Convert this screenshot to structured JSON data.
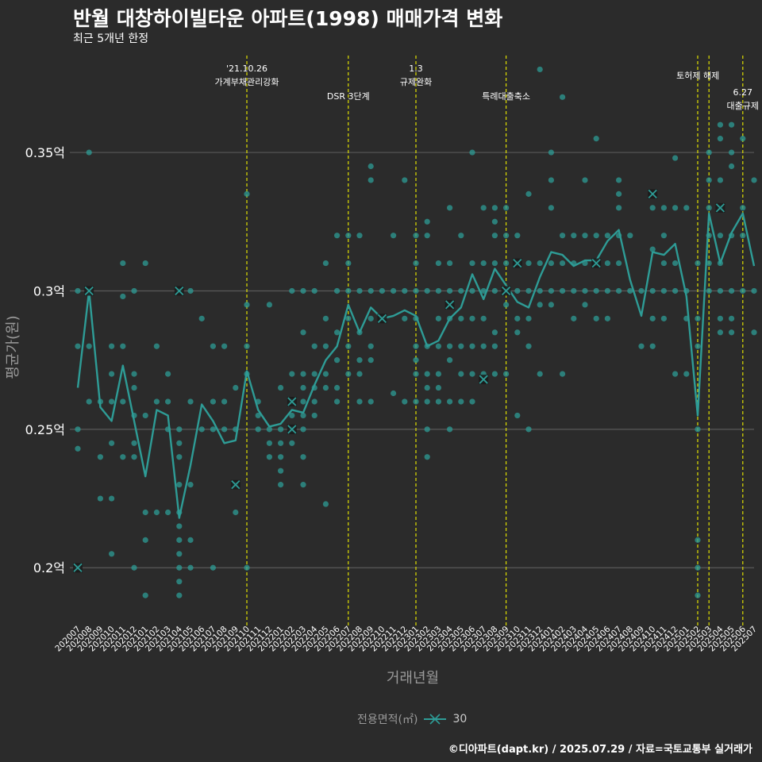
{
  "title": "반월 대창하이빌타운 아파트(1998) 매매가격 변화",
  "subtitle": "최근 5개년 한정",
  "caption": "©디아파트(dapt.kr) / 2025.07.29 / 자료=국토교통부 실거래가",
  "legend": {
    "title": "전용면적(㎡)",
    "label": "30"
  },
  "colors": {
    "background": "#2b2b2b",
    "series": "#2e9c96",
    "point": "#2e9c96",
    "event_line": "#e0e000",
    "grid": "#5a5a5a"
  },
  "chart_data": {
    "type": "line",
    "title": "반월 대창하이빌타운 아파트(1998) 매매가격 변화",
    "xlabel": "거래년월",
    "ylabel": "평균가(원)",
    "ylim": [
      0.18,
      0.385
    ],
    "yticks": [
      0.2,
      0.25,
      0.3,
      0.35
    ],
    "ytick_labels": [
      "0.2억",
      "0.25억",
      "0.3억",
      "0.35억"
    ],
    "categories": [
      "202007",
      "202008",
      "202009",
      "202010",
      "202011",
      "202012",
      "202101",
      "202102",
      "202103",
      "202104",
      "202105",
      "202106",
      "202107",
      "202108",
      "202109",
      "202110",
      "202111",
      "202112",
      "202201",
      "202202",
      "202203",
      "202204",
      "202205",
      "202206",
      "202207",
      "202208",
      "202209",
      "202210",
      "202211",
      "202212",
      "202301",
      "202302",
      "202303",
      "202304",
      "202305",
      "202306",
      "202307",
      "202308",
      "202309",
      "202310",
      "202311",
      "202312",
      "202401",
      "202402",
      "202403",
      "202404",
      "202405",
      "202406",
      "202407",
      "202408",
      "202409",
      "202410",
      "202411",
      "202412",
      "202501",
      "202502",
      "202503",
      "202504",
      "202505",
      "202506",
      "202507"
    ],
    "series": [
      {
        "name": "30",
        "values": [
          0.265,
          0.3,
          0.258,
          0.253,
          0.273,
          0.253,
          0.233,
          0.257,
          0.255,
          0.218,
          0.237,
          0.259,
          0.253,
          0.245,
          0.246,
          0.271,
          0.257,
          0.251,
          0.252,
          0.257,
          0.256,
          0.266,
          0.275,
          0.28,
          0.295,
          0.285,
          0.294,
          0.29,
          0.291,
          0.293,
          0.291,
          0.28,
          0.282,
          0.29,
          0.294,
          0.306,
          0.297,
          0.308,
          0.302,
          0.296,
          0.294,
          0.305,
          0.314,
          0.313,
          0.309,
          0.311,
          0.311,
          0.318,
          0.322,
          0.304,
          0.291,
          0.314,
          0.313,
          0.317,
          0.298,
          0.255,
          0.328,
          0.31,
          0.321,
          0.328,
          0.309
        ]
      }
    ],
    "highlight_points": [
      {
        "x": "202007",
        "y": 0.2
      },
      {
        "x": "202008",
        "y": 0.3
      },
      {
        "x": "202104",
        "y": 0.3
      },
      {
        "x": "202109",
        "y": 0.23
      },
      {
        "x": "202202",
        "y": 0.26
      },
      {
        "x": "202202",
        "y": 0.25
      },
      {
        "x": "202210",
        "y": 0.29
      },
      {
        "x": "202304",
        "y": 0.295
      },
      {
        "x": "202307",
        "y": 0.268
      },
      {
        "x": "202309",
        "y": 0.3
      },
      {
        "x": "202310",
        "y": 0.31
      },
      {
        "x": "202405",
        "y": 0.31
      },
      {
        "x": "202410",
        "y": 0.335
      },
      {
        "x": "202504",
        "y": 0.33
      }
    ],
    "events": [
      {
        "x": "202110",
        "lines": [
          "'21.10.26",
          "가계부채관리강화"
        ],
        "row": 0
      },
      {
        "x": "202207",
        "lines": [
          "DSR 3단계"
        ],
        "row": 1
      },
      {
        "x": "202301",
        "lines": [
          "1.3",
          "규제완화"
        ],
        "row": 0
      },
      {
        "x": "202309",
        "lines": [
          "특례대출축소"
        ],
        "row": 1
      },
      {
        "x": "202502",
        "lines": [],
        "row": 0
      },
      {
        "x": "202503",
        "lines": [
          "토허제 해제"
        ],
        "row": 0
      },
      {
        "x": "202506",
        "lines": [
          "6.27",
          "대출규제"
        ],
        "row": 2
      }
    ],
    "scatter": [
      [
        "202007",
        [
          0.3,
          0.28,
          0.25,
          0.243,
          0.2
        ]
      ],
      [
        "202008",
        [
          0.35,
          0.3,
          0.28,
          0.26
        ]
      ],
      [
        "202009",
        [
          0.24,
          0.225,
          0.26
        ]
      ],
      [
        "202010",
        [
          0.28,
          0.27,
          0.26,
          0.245,
          0.225,
          0.205
        ]
      ],
      [
        "202011",
        [
          0.31,
          0.298,
          0.28,
          0.26,
          0.24
        ]
      ],
      [
        "202012",
        [
          0.3,
          0.27,
          0.265,
          0.255,
          0.245,
          0.24,
          0.2
        ]
      ],
      [
        "202101",
        [
          0.31,
          0.255,
          0.22,
          0.21,
          0.19
        ]
      ],
      [
        "202102",
        [
          0.28,
          0.26,
          0.22
        ]
      ],
      [
        "202103",
        [
          0.27,
          0.26,
          0.25,
          0.22
        ]
      ],
      [
        "202104",
        [
          0.3,
          0.25,
          0.245,
          0.24,
          0.23,
          0.22,
          0.215,
          0.21,
          0.205,
          0.2,
          0.195,
          0.19
        ]
      ],
      [
        "202105",
        [
          0.3,
          0.26,
          0.23,
          0.21,
          0.2
        ]
      ],
      [
        "202106",
        [
          0.29,
          0.25
        ]
      ],
      [
        "202107",
        [
          0.28,
          0.26,
          0.25,
          0.2
        ]
      ],
      [
        "202108",
        [
          0.28,
          0.26,
          0.25
        ]
      ],
      [
        "202109",
        [
          0.265,
          0.25,
          0.23,
          0.22
        ]
      ],
      [
        "202110",
        [
          0.335,
          0.295,
          0.28,
          0.27,
          0.2
        ]
      ],
      [
        "202111",
        [
          0.26,
          0.255,
          0.25
        ]
      ],
      [
        "202112",
        [
          0.295,
          0.25,
          0.245,
          0.24
        ]
      ],
      [
        "202201",
        [
          0.265,
          0.25,
          0.245,
          0.24,
          0.235,
          0.23
        ]
      ],
      [
        "202202",
        [
          0.3,
          0.27,
          0.26,
          0.255,
          0.25,
          0.245
        ]
      ],
      [
        "202203",
        [
          0.3,
          0.285,
          0.27,
          0.265,
          0.26,
          0.255,
          0.25,
          0.24,
          0.23
        ]
      ],
      [
        "202204",
        [
          0.3,
          0.28,
          0.27,
          0.265,
          0.26,
          0.255
        ]
      ],
      [
        "202205",
        [
          0.31,
          0.29,
          0.28,
          0.27,
          0.265,
          0.223
        ]
      ],
      [
        "202206",
        [
          0.32,
          0.3,
          0.285,
          0.275,
          0.265,
          0.26
        ]
      ],
      [
        "202207",
        [
          0.32,
          0.31,
          0.3,
          0.29,
          0.28,
          0.27
        ]
      ],
      [
        "202208",
        [
          0.32,
          0.3,
          0.285,
          0.275,
          0.27,
          0.26
        ]
      ],
      [
        "202209",
        [
          0.345,
          0.34,
          0.3,
          0.29,
          0.28,
          0.275,
          0.26
        ]
      ],
      [
        "202210",
        [
          0.3,
          0.29
        ]
      ],
      [
        "202211",
        [
          0.32,
          0.3,
          0.263
        ]
      ],
      [
        "202212",
        [
          0.34,
          0.3,
          0.29,
          0.26
        ]
      ],
      [
        "202301",
        [
          0.32,
          0.31,
          0.3,
          0.29,
          0.28,
          0.275,
          0.27,
          0.26
        ]
      ],
      [
        "202302",
        [
          0.325,
          0.32,
          0.3,
          0.28,
          0.27,
          0.265,
          0.26,
          0.25,
          0.24
        ]
      ],
      [
        "202303",
        [
          0.31,
          0.3,
          0.29,
          0.28,
          0.27,
          0.265,
          0.26
        ]
      ],
      [
        "202304",
        [
          0.33,
          0.31,
          0.3,
          0.29,
          0.28,
          0.275,
          0.26,
          0.25
        ]
      ],
      [
        "202305",
        [
          0.32,
          0.3,
          0.29,
          0.28,
          0.27,
          0.26
        ]
      ],
      [
        "202306",
        [
          0.35,
          0.31,
          0.3,
          0.29,
          0.28,
          0.27,
          0.26
        ]
      ],
      [
        "202307",
        [
          0.33,
          0.31,
          0.3,
          0.29,
          0.28,
          0.27
        ]
      ],
      [
        "202308",
        [
          0.33,
          0.325,
          0.32,
          0.31,
          0.3,
          0.285,
          0.28,
          0.27
        ]
      ],
      [
        "202309",
        [
          0.33,
          0.32,
          0.31,
          0.3,
          0.295,
          0.27
        ]
      ],
      [
        "202310",
        [
          0.32,
          0.31,
          0.3,
          0.29,
          0.285,
          0.255
        ]
      ],
      [
        "202311",
        [
          0.335,
          0.31,
          0.3,
          0.29,
          0.28,
          0.25
        ]
      ],
      [
        "202312",
        [
          0.38,
          0.31,
          0.3,
          0.295,
          0.27
        ]
      ],
      [
        "202401",
        [
          0.35,
          0.34,
          0.33,
          0.31,
          0.3,
          0.295
        ]
      ],
      [
        "202402",
        [
          0.37,
          0.32,
          0.31,
          0.3,
          0.27
        ]
      ],
      [
        "202403",
        [
          0.32,
          0.31,
          0.3,
          0.29
        ]
      ],
      [
        "202404",
        [
          0.34,
          0.32,
          0.31,
          0.3,
          0.295
        ]
      ],
      [
        "202405",
        [
          0.355,
          0.32,
          0.31,
          0.3,
          0.29
        ]
      ],
      [
        "202406",
        [
          0.32,
          0.31,
          0.3,
          0.29
        ]
      ],
      [
        "202407",
        [
          0.34,
          0.335,
          0.33,
          0.32,
          0.31,
          0.3
        ]
      ],
      [
        "202408",
        [
          0.32,
          0.3
        ]
      ],
      [
        "202409",
        [
          0.3,
          0.28
        ]
      ],
      [
        "202410",
        [
          0.33,
          0.315,
          0.3,
          0.29,
          0.28
        ]
      ],
      [
        "202411",
        [
          0.33,
          0.32,
          0.31,
          0.3,
          0.29
        ]
      ],
      [
        "202412",
        [
          0.348,
          0.33,
          0.31,
          0.3,
          0.27
        ]
      ],
      [
        "202501",
        [
          0.33,
          0.3,
          0.29,
          0.27
        ]
      ],
      [
        "202502",
        [
          0.31,
          0.29,
          0.28,
          0.25,
          0.21,
          0.2,
          0.19
        ]
      ],
      [
        "202503",
        [
          0.35,
          0.34,
          0.33,
          0.32,
          0.31,
          0.3
        ]
      ],
      [
        "202504",
        [
          0.36,
          0.355,
          0.34,
          0.33,
          0.32,
          0.31,
          0.3,
          0.29,
          0.285
        ]
      ],
      [
        "202505",
        [
          0.36,
          0.35,
          0.345,
          0.32,
          0.3,
          0.29,
          0.285
        ]
      ],
      [
        "202506",
        [
          0.355,
          0.33,
          0.32,
          0.3
        ]
      ],
      [
        "202507",
        [
          0.34,
          0.3,
          0.285
        ]
      ]
    ]
  }
}
